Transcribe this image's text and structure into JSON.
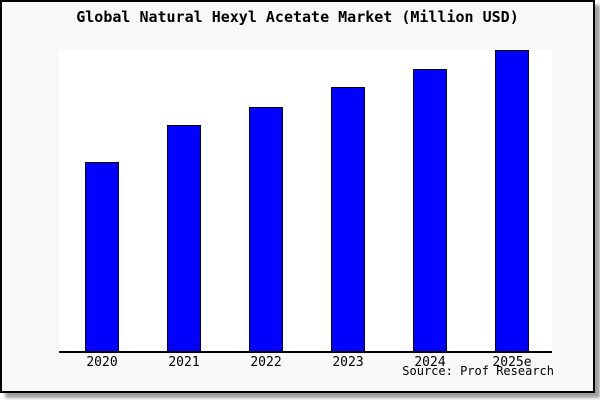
{
  "title": "Global Natural Hexyl Acetate Market (Million USD)",
  "source_note": "Source: Prof Research",
  "colors": {
    "bar_fill": "#0000ff",
    "bar_outline": "#000000",
    "plot_background": "#ffffff",
    "canvas_background": "#f8f8f8",
    "frame_border": "#000000",
    "shadow": "#616161",
    "text": "#000000"
  },
  "chart_data": {
    "type": "bar",
    "title": "Global Natural Hexyl Acetate Market (Million USD)",
    "categories": [
      "2020",
      "2021",
      "2022",
      "2023",
      "2024",
      "2025e"
    ],
    "values": [
      62.8,
      75.1,
      81.2,
      87.7,
      93.7,
      100
    ],
    "value_scale": "relative index (2025e = 100); chart shows no numeric y-axis or data labels",
    "xlabel": "",
    "ylabel": "",
    "ylim": [
      0,
      100.3
    ],
    "grid": false,
    "legend": false,
    "axes_shown": [
      "bottom"
    ],
    "source_note": "Source: Prof Research"
  }
}
